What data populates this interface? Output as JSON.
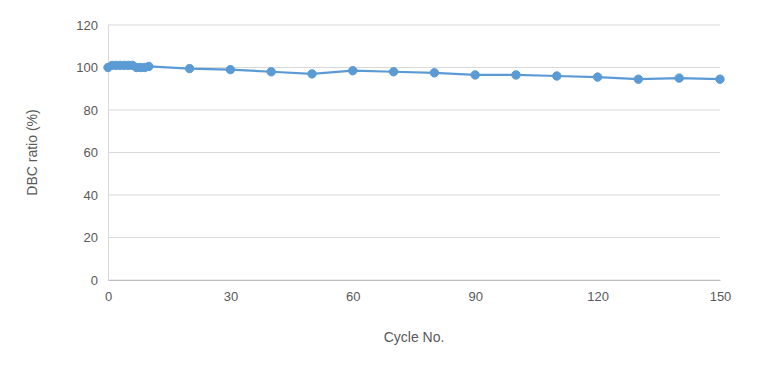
{
  "chart_data": {
    "type": "line",
    "x_label": "Cycle No.",
    "y_label": "DBC ratio (%)",
    "x": [
      0,
      1,
      2,
      3,
      4,
      5,
      6,
      7,
      8,
      9,
      10,
      20,
      30,
      40,
      50,
      60,
      70,
      80,
      90,
      100,
      110,
      120,
      130,
      140,
      150
    ],
    "values": [
      100,
      101,
      101,
      101,
      101,
      101,
      101,
      100,
      100,
      100,
      100.5,
      99.5,
      99,
      98,
      97,
      98.5,
      98,
      97.5,
      96.5,
      96.5,
      96,
      95.5,
      94.5,
      95,
      94.5
    ],
    "color": "#5b9bd5",
    "marker": "circle",
    "line_style": "solid",
    "xlim": [
      0,
      150
    ],
    "xticks": [
      0,
      30,
      60,
      90,
      120,
      150
    ],
    "ylim": [
      0,
      120
    ],
    "yticks": [
      0,
      20,
      40,
      60,
      80,
      100,
      120
    ],
    "grid": true
  }
}
